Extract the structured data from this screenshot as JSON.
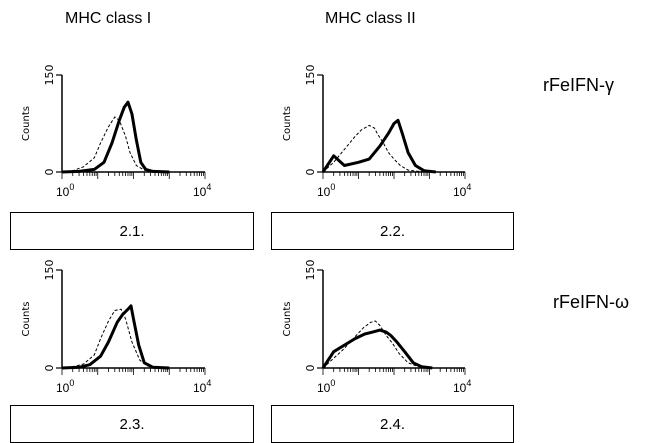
{
  "column_headers": [
    "MHC class I",
    "MHC class II"
  ],
  "row_labels": [
    "rFeIFN-γ",
    "rFeIFN-ω"
  ],
  "chart_data": [
    {
      "id": "2.1.",
      "type": "line",
      "ylabel": "Counts",
      "yticks": [
        "0",
        "150"
      ],
      "xticks": [
        {
          "base": "10",
          "exp": "0"
        },
        {
          "base": "10",
          "exp": "4"
        }
      ],
      "xscale": "log",
      "xlim": [
        1,
        10000
      ],
      "ylim": [
        0,
        150
      ],
      "series": [
        {
          "style": "dashed",
          "x": [
            1,
            2,
            4,
            8,
            12,
            20,
            30,
            40,
            60,
            80,
            120,
            200,
            400,
            1000
          ],
          "y": [
            0,
            2,
            8,
            22,
            45,
            70,
            85,
            80,
            55,
            30,
            10,
            3,
            1,
            0
          ]
        },
        {
          "style": "solid",
          "x": [
            1,
            3,
            8,
            15,
            25,
            40,
            55,
            70,
            90,
            120,
            160,
            220,
            350,
            1000
          ],
          "y": [
            0,
            1,
            4,
            15,
            45,
            80,
            100,
            108,
            90,
            50,
            15,
            4,
            1,
            0
          ]
        }
      ]
    },
    {
      "id": "2.2.",
      "type": "line",
      "ylabel": "Counts",
      "yticks": [
        "0",
        "150"
      ],
      "xticks": [
        {
          "base": "10",
          "exp": "0"
        },
        {
          "base": "10",
          "exp": "4"
        }
      ],
      "xscale": "log",
      "xlim": [
        1,
        10000
      ],
      "ylim": [
        0,
        150
      ],
      "series": [
        {
          "style": "dashed",
          "x": [
            1,
            2,
            4,
            8,
            12,
            20,
            28,
            35,
            50,
            70,
            100,
            150,
            250,
            500,
            1000
          ],
          "y": [
            0,
            15,
            35,
            55,
            65,
            72,
            68,
            58,
            45,
            30,
            20,
            10,
            3,
            1,
            0
          ]
        },
        {
          "style": "solid",
          "x": [
            1,
            2,
            4,
            10,
            20,
            40,
            70,
            100,
            130,
            170,
            250,
            400,
            700,
            1500
          ],
          "y": [
            0,
            25,
            10,
            15,
            20,
            40,
            60,
            75,
            80,
            60,
            30,
            10,
            2,
            0
          ]
        }
      ]
    },
    {
      "id": "2.3.",
      "type": "line",
      "ylabel": "Counts",
      "yticks": [
        "0",
        "150"
      ],
      "xticks": [
        {
          "base": "10",
          "exp": "0"
        },
        {
          "base": "10",
          "exp": "4"
        }
      ],
      "xscale": "log",
      "xlim": [
        1,
        10000
      ],
      "ylim": [
        0,
        150
      ],
      "series": [
        {
          "style": "dashed",
          "x": [
            1,
            2,
            4,
            8,
            12,
            20,
            30,
            45,
            60,
            90,
            150,
            250,
            500,
            1000
          ],
          "y": [
            0,
            2,
            6,
            20,
            45,
            72,
            88,
            90,
            75,
            40,
            12,
            3,
            1,
            0
          ]
        },
        {
          "style": "solid",
          "x": [
            1,
            3,
            6,
            12,
            20,
            35,
            50,
            70,
            85,
            100,
            140,
            200,
            350,
            1000
          ],
          "y": [
            0,
            1,
            5,
            18,
            40,
            70,
            82,
            90,
            95,
            75,
            35,
            8,
            1,
            0
          ]
        }
      ]
    },
    {
      "id": "2.4.",
      "type": "line",
      "ylabel": "Counts",
      "yticks": [
        "0",
        "150"
      ],
      "xticks": [
        {
          "base": "10",
          "exp": "0"
        },
        {
          "base": "10",
          "exp": "4"
        }
      ],
      "xscale": "log",
      "xlim": [
        1,
        10000
      ],
      "ylim": [
        0,
        150
      ],
      "series": [
        {
          "style": "dashed",
          "x": [
            1,
            2,
            4,
            8,
            14,
            22,
            30,
            40,
            60,
            90,
            140,
            250,
            500,
            1000
          ],
          "y": [
            0,
            15,
            30,
            48,
            62,
            70,
            72,
            65,
            50,
            38,
            22,
            8,
            2,
            0
          ]
        },
        {
          "style": "solid",
          "x": [
            1,
            2,
            4,
            8,
            15,
            25,
            40,
            60,
            80,
            120,
            200,
            350,
            600,
            1200
          ],
          "y": [
            0,
            25,
            35,
            45,
            52,
            55,
            58,
            55,
            50,
            40,
            25,
            8,
            2,
            0
          ]
        }
      ]
    }
  ]
}
